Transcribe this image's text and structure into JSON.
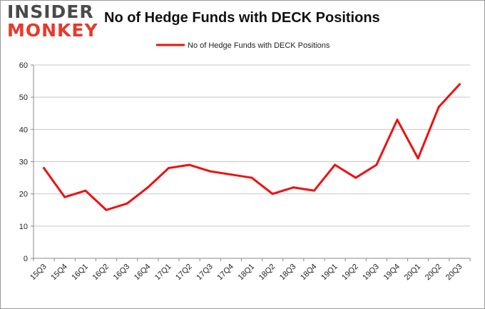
{
  "brand": {
    "logo_top": "INSIDER",
    "logo_bottom": "MONKEY",
    "accent": "#e8392b"
  },
  "chart_data": {
    "type": "line",
    "title": "No of Hedge Funds with DECK Positions",
    "categories": [
      "15Q3",
      "15Q4",
      "16Q1",
      "16Q2",
      "16Q3",
      "16Q4",
      "17Q1",
      "17Q2",
      "17Q3",
      "17Q4",
      "18Q1",
      "18Q2",
      "18Q3",
      "18Q4",
      "19Q1",
      "19Q2",
      "19Q3",
      "19Q4",
      "20Q1",
      "20Q2",
      "20Q3"
    ],
    "series": [
      {
        "name": "No of Hedge Funds with DECK Positions",
        "color": "#ee1111",
        "values": [
          28,
          19,
          21,
          15,
          17,
          22,
          28,
          29,
          27,
          26,
          25,
          20,
          22,
          21,
          29,
          25,
          29,
          43,
          31,
          47,
          54
        ]
      }
    ],
    "ylim": [
      0,
      60
    ],
    "yticks": [
      0,
      10,
      20,
      30,
      40,
      50,
      60
    ],
    "grid": true,
    "legend_position": "top-center",
    "xlabel": "",
    "ylabel": ""
  }
}
